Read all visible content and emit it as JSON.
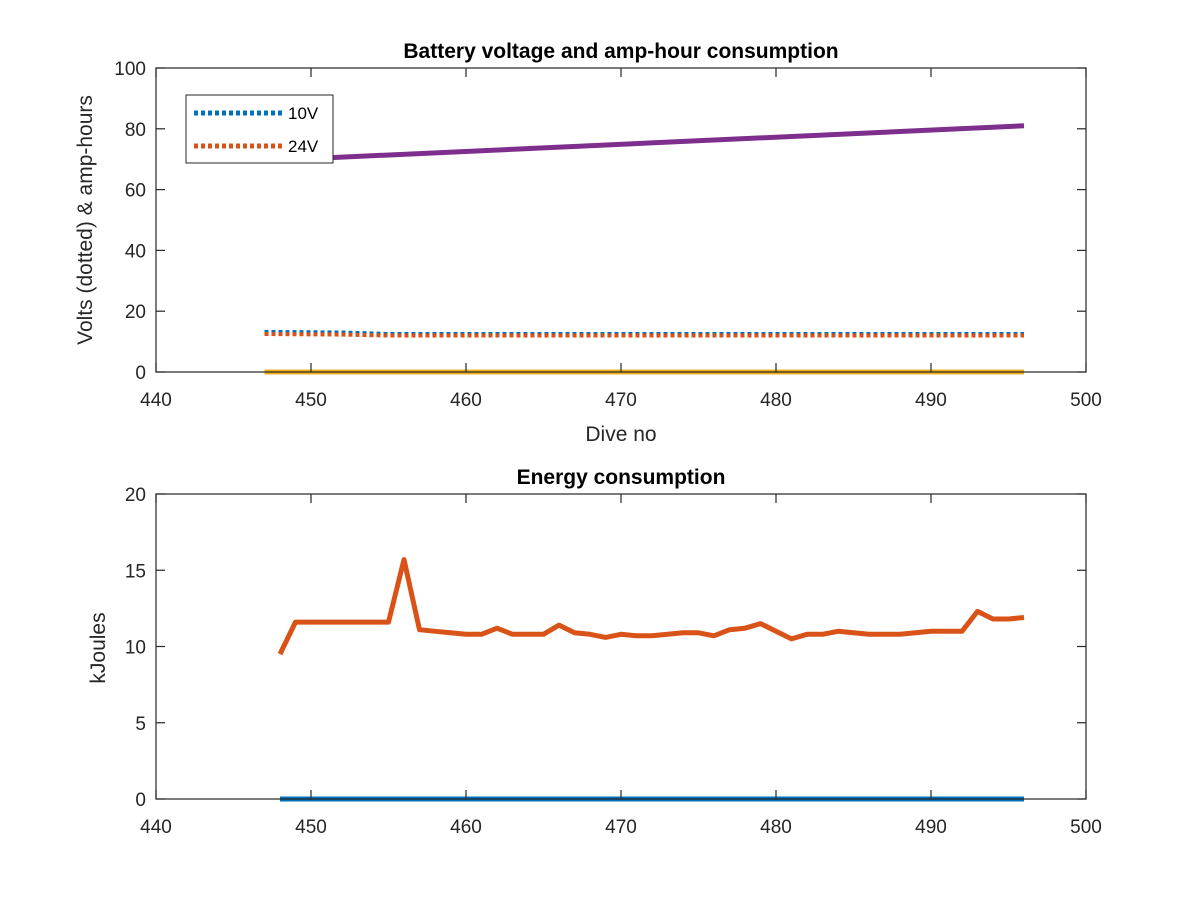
{
  "chart_data": [
    {
      "type": "line",
      "title": "Battery voltage and amp-hour consumption",
      "xlabel": "Dive no",
      "ylabel": "Volts (dotted) & amp-hours",
      "xlim": [
        440,
        500
      ],
      "ylim": [
        0,
        100
      ],
      "xticks": [
        "440",
        "450",
        "460",
        "470",
        "480",
        "490",
        "500"
      ],
      "yticks": [
        "0",
        "20",
        "40",
        "60",
        "80",
        "100"
      ],
      "grid": false,
      "legend": {
        "placement": "top-left",
        "entries": [
          "10V",
          "24V"
        ]
      },
      "series": [
        {
          "name": "10V",
          "style": "dotted",
          "color": "#0072BD",
          "x": [
            447,
            452,
            455,
            460,
            465,
            470,
            475,
            480,
            485,
            490,
            496
          ],
          "y": [
            13.2,
            13.0,
            12.5,
            12.5,
            12.5,
            12.5,
            12.5,
            12.5,
            12.5,
            12.5,
            12.5
          ]
        },
        {
          "name": "24V",
          "style": "dotted",
          "color": "#D95319",
          "x": [
            447,
            452,
            455,
            460,
            465,
            470,
            475,
            480,
            485,
            490,
            496
          ],
          "y": [
            12.5,
            12.3,
            12.0,
            12.0,
            12.0,
            12.0,
            12.0,
            12.0,
            12.0,
            12.0,
            12.0
          ]
        },
        {
          "style": "solid",
          "color": "#EDB120",
          "x": [
            447,
            496
          ],
          "y": [
            0,
            0
          ]
        },
        {
          "style": "solid",
          "color": "#7E2F8E",
          "x": [
            447,
            496
          ],
          "y": [
            69.5,
            81
          ]
        }
      ]
    },
    {
      "type": "line",
      "title": "Energy consumption",
      "xlabel": "",
      "ylabel": "kJoules",
      "xlim": [
        440,
        500
      ],
      "ylim": [
        0,
        20
      ],
      "xticks": [
        "440",
        "450",
        "460",
        "470",
        "480",
        "490",
        "500"
      ],
      "yticks": [
        "0",
        "5",
        "10",
        "15",
        "20"
      ],
      "grid": false,
      "series": [
        {
          "style": "solid",
          "color": "#0072BD",
          "x": [
            448,
            496
          ],
          "y": [
            0,
            0
          ]
        },
        {
          "style": "solid",
          "color": "#D95319",
          "x": [
            448,
            449,
            450,
            451,
            452,
            453,
            454,
            455,
            456,
            457,
            458,
            459,
            460,
            461,
            462,
            463,
            464,
            465,
            466,
            467,
            468,
            469,
            470,
            471,
            472,
            473,
            474,
            475,
            476,
            477,
            478,
            479,
            480,
            481,
            482,
            483,
            484,
            485,
            486,
            487,
            488,
            489,
            490,
            491,
            492,
            493,
            494,
            495,
            496
          ],
          "y": [
            9.5,
            11.6,
            11.6,
            11.6,
            11.6,
            11.6,
            11.6,
            11.6,
            15.7,
            11.1,
            11.0,
            10.9,
            10.8,
            10.8,
            11.2,
            10.8,
            10.8,
            10.8,
            11.4,
            10.9,
            10.8,
            10.6,
            10.8,
            10.7,
            10.7,
            10.8,
            10.9,
            10.9,
            10.7,
            11.1,
            11.2,
            11.5,
            11.0,
            10.5,
            10.8,
            10.8,
            11.0,
            10.9,
            10.8,
            10.8,
            10.8,
            10.9,
            11.0,
            11.0,
            11.0,
            12.3,
            11.8,
            11.8,
            11.9
          ]
        }
      ]
    }
  ]
}
